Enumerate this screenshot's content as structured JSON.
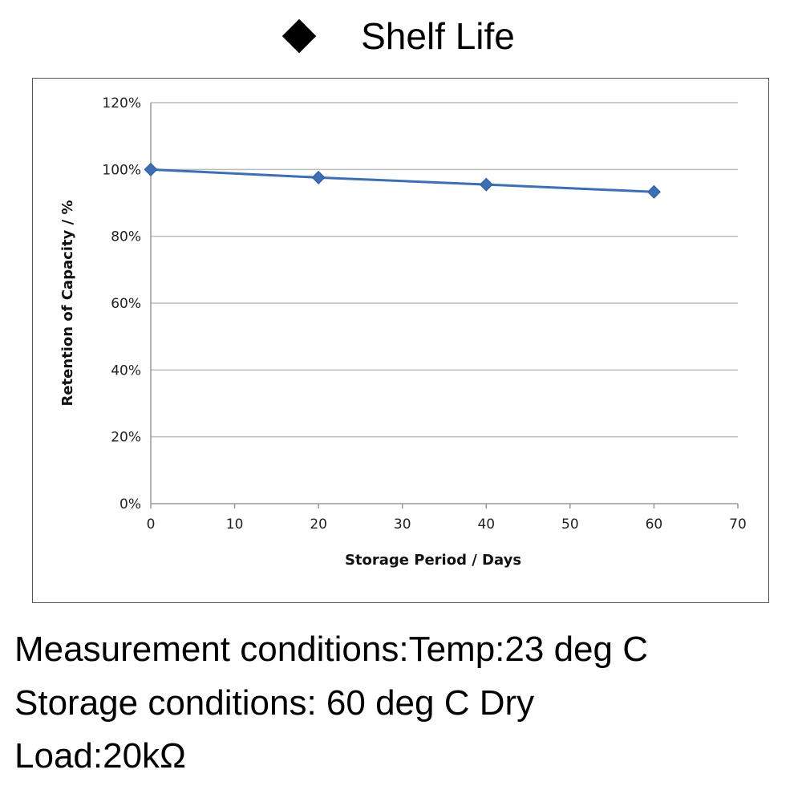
{
  "title": "Shelf  Life",
  "title_marker": "black-diamond",
  "chart_data": {
    "type": "line",
    "title": "Shelf  Life",
    "xlabel": "Storage Period / Days",
    "ylabel": "Retention of Capacity / %",
    "xlim": [
      0,
      70
    ],
    "ylim": [
      0,
      120
    ],
    "xticks": [
      "0",
      "10",
      "20",
      "30",
      "40",
      "50",
      "60",
      "70"
    ],
    "yticks": [
      "0%",
      "20%",
      "40%",
      "60%",
      "80%",
      "100%",
      "120%"
    ],
    "grid": "horizontal",
    "marker": "diamond",
    "color": "#3d6fb4",
    "series": [
      {
        "x": [
          0,
          20,
          40,
          60
        ],
        "values": [
          100,
          97.6,
          95.5,
          93.3
        ]
      }
    ]
  },
  "notes": [
    "Measurement conditions:Temp:23 deg C",
    "Storage conditions: 60 deg C Dry",
    "Load:20kΩ"
  ]
}
